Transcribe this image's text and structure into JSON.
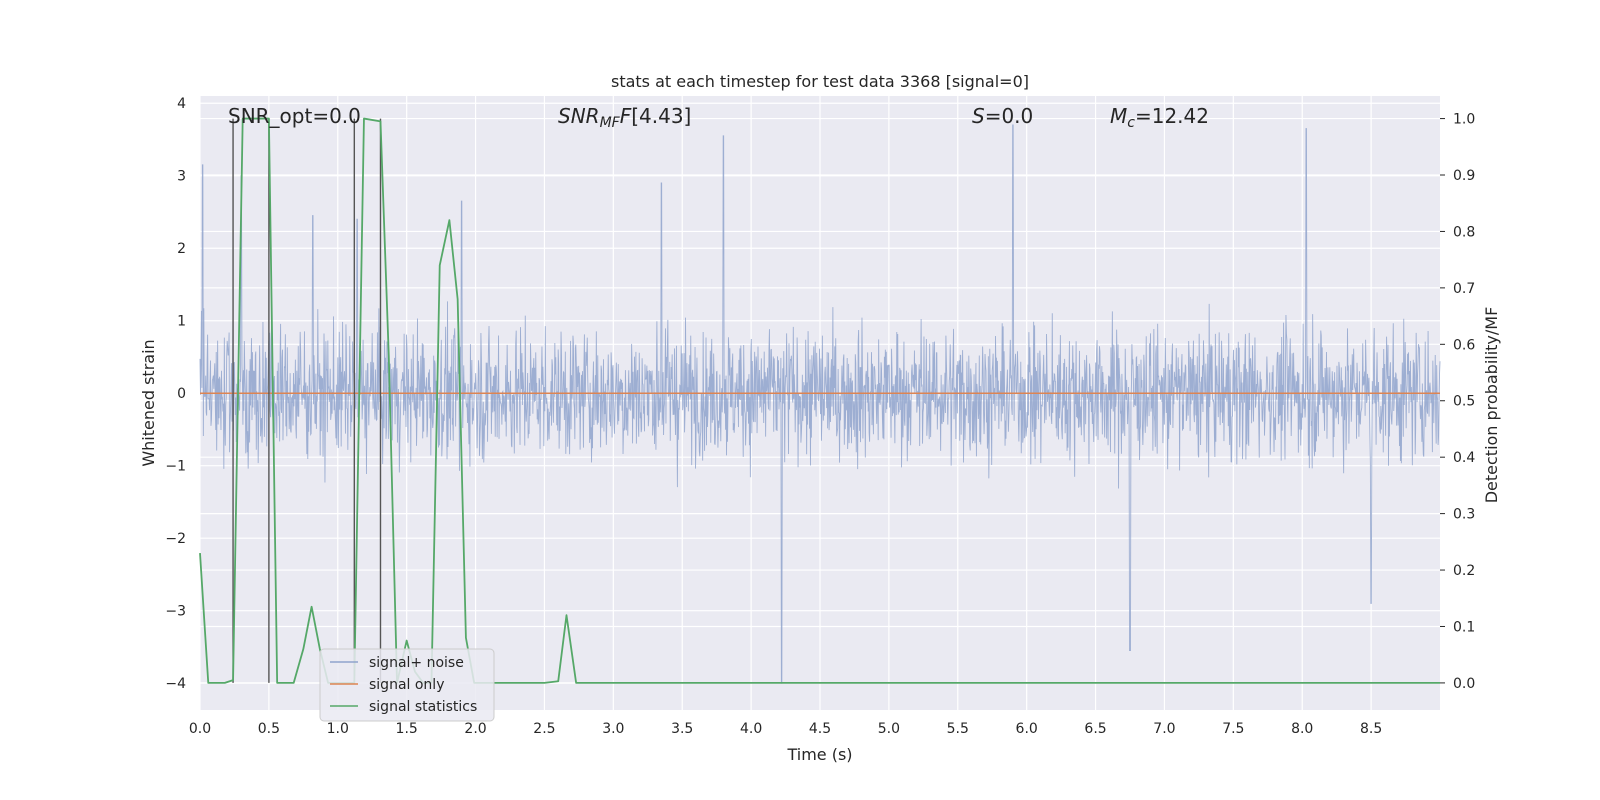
{
  "chart_data": {
    "type": "line",
    "title": "stats at each timestep for test data 3368 [signal=0]",
    "xlabel": "Time (s)",
    "ylabel_left": "Whitened strain",
    "ylabel_right": "Detection probability/MF",
    "xlim": [
      0.0,
      9.0
    ],
    "ylim_left": [
      -4.37,
      4.1
    ],
    "ylim_right": [
      -0.048,
      1.04
    ],
    "xticks": [
      "0.0",
      "0.5",
      "1.0",
      "1.5",
      "2.0",
      "2.5",
      "3.0",
      "3.5",
      "4.0",
      "4.5",
      "5.0",
      "5.5",
      "6.0",
      "6.5",
      "7.0",
      "7.5",
      "8.0",
      "8.5"
    ],
    "yticks_left": [
      "4",
      "3",
      "2",
      "1",
      "0",
      "−1",
      "−2",
      "−3",
      "−4"
    ],
    "yticks_right": [
      "1.0",
      "0.9",
      "0.8",
      "0.7",
      "0.6",
      "0.5",
      "0.4",
      "0.3",
      "0.2",
      "0.1",
      "0.0"
    ],
    "grid": true,
    "legend_position": "lower-left",
    "annotations": {
      "snr_opt": "SNR_opt=0.0",
      "snr_mf": "[4.43]",
      "s_val": "=0.0",
      "mc_val": "=12.42"
    },
    "series": [
      {
        "name": "signal+ noise",
        "color": "#8fa3cc",
        "description_values": {
          "typical_band": [
            -1.4,
            1.4
          ],
          "peaks": [
            [
              0.02,
              3.15
            ],
            [
              0.3,
              3.0
            ],
            [
              0.82,
              2.45
            ],
            [
              1.14,
              2.4
            ],
            [
              1.9,
              2.65
            ],
            [
              3.35,
              2.9
            ],
            [
              3.8,
              3.55
            ],
            [
              4.22,
              -4.0
            ],
            [
              5.9,
              3.7
            ],
            [
              6.75,
              -3.55
            ],
            [
              8.03,
              3.65
            ],
            [
              8.5,
              -2.9
            ]
          ]
        }
      },
      {
        "name": "signal only",
        "color": "#dd8452",
        "x": [
          0.0,
          9.0
        ],
        "y": [
          0.0,
          0.0
        ]
      },
      {
        "name": "signal statistics",
        "color": "#55a868",
        "x": [
          0.0,
          0.06,
          0.18,
          0.24,
          0.31,
          0.5,
          0.56,
          0.68,
          0.75,
          0.81,
          0.87,
          0.93,
          1.03,
          1.12,
          1.19,
          1.31,
          1.37,
          1.43,
          1.5,
          1.56,
          1.62,
          1.68,
          1.74,
          1.81,
          1.87,
          1.93,
          1.99,
          2.06,
          2.5,
          2.6,
          2.66,
          2.73,
          2.79,
          9.0
        ],
        "y": [
          0.23,
          0.0,
          0.0,
          0.005,
          1.0,
          1.0,
          0.0,
          0.0,
          0.06,
          0.135,
          0.06,
          0.0,
          0.0,
          0.0,
          1.0,
          0.995,
          0.58,
          0.0,
          0.075,
          0.02,
          0.0,
          0.0,
          0.74,
          0.82,
          0.68,
          0.08,
          0.0,
          0.0,
          0.0,
          0.003,
          0.12,
          0.0,
          0.0,
          0.0
        ]
      }
    ],
    "vertical_lines_x": [
      0.24,
      0.5,
      1.12,
      1.31
    ]
  }
}
